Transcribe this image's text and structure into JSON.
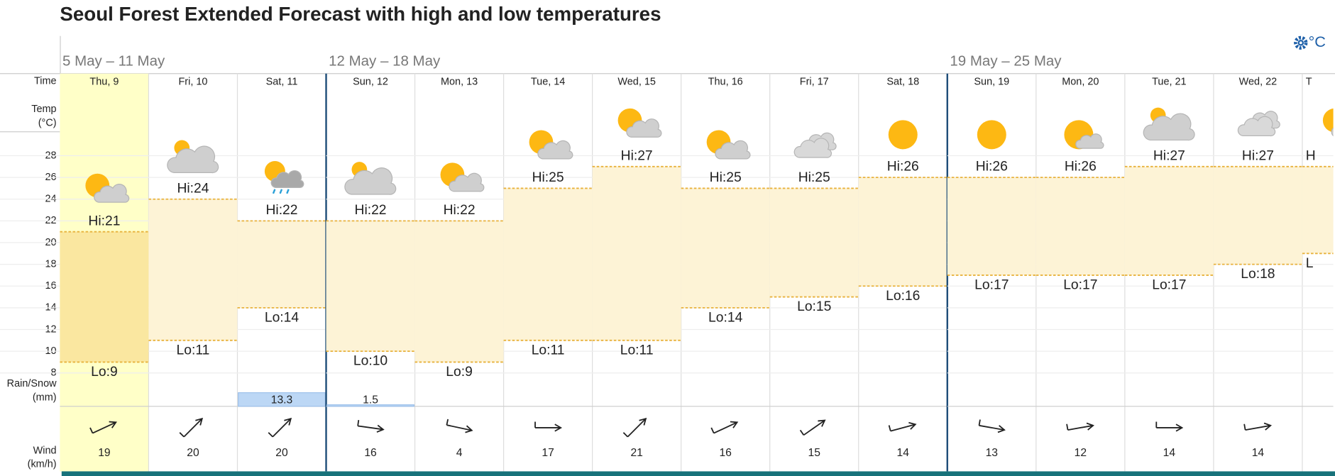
{
  "title": "Seoul Forest Extended Forecast with high and low temperatures",
  "unit": "°C",
  "row_labels": {
    "time": "Time",
    "temp": "Temp",
    "temp_unit": "(°C)",
    "rain": "Rain/Snow",
    "rain_unit": "(mm)",
    "wind": "Wind",
    "wind_unit": "(km/h)"
  },
  "temp_axis": {
    "ylim": [
      8,
      28
    ],
    "yticks": [
      8,
      10,
      12,
      14,
      16,
      18,
      20,
      22,
      24,
      26,
      28
    ]
  },
  "weeks": [
    {
      "label": "5 May – 11 May",
      "days": [
        {
          "label": "Thu, 9",
          "highlight": true,
          "icon": "partly",
          "hi": 21,
          "hi_label": "Hi:21",
          "lo": 9,
          "lo_label": "Lo:9",
          "rain": null,
          "wind": 19
        },
        {
          "label": "Fri, 10",
          "icon": "partly-cloud",
          "hi": 24,
          "hi_label": "Hi:24",
          "lo": 11,
          "lo_label": "Lo:11",
          "rain": null,
          "wind": 20
        },
        {
          "label": "Sat, 11",
          "icon": "rain",
          "hi": 22,
          "hi_label": "Hi:22",
          "lo": 14,
          "lo_label": "Lo:14",
          "rain": 13.3,
          "wind": 20
        }
      ]
    },
    {
      "label": "12 May – 18 May",
      "days": [
        {
          "label": "Sun, 12",
          "icon": "partly-cloud",
          "hi": 22,
          "hi_label": "Hi:22",
          "lo": 10,
          "lo_label": "Lo:10",
          "rain": 1.5,
          "wind": 16
        },
        {
          "label": "Mon, 13",
          "icon": "partly",
          "hi": 22,
          "hi_label": "Hi:22",
          "lo": 9,
          "lo_label": "Lo:9",
          "rain": null,
          "wind": 4
        },
        {
          "label": "Tue, 14",
          "icon": "partly",
          "hi": 25,
          "hi_label": "Hi:25",
          "lo": 11,
          "lo_label": "Lo:11",
          "rain": null,
          "wind": 17
        },
        {
          "label": "Wed, 15",
          "icon": "partly",
          "hi": 27,
          "hi_label": "Hi:27",
          "lo": 11,
          "lo_label": "Lo:11",
          "rain": null,
          "wind": 21
        },
        {
          "label": "Thu, 16",
          "icon": "partly",
          "hi": 25,
          "hi_label": "Hi:25",
          "lo": 14,
          "lo_label": "Lo:14",
          "rain": null,
          "wind": 16
        },
        {
          "label": "Fri, 17",
          "icon": "cloud",
          "hi": 25,
          "hi_label": "Hi:25",
          "lo": 15,
          "lo_label": "Lo:15",
          "rain": null,
          "wind": 15
        },
        {
          "label": "Sat, 18",
          "icon": "sun",
          "hi": 26,
          "hi_label": "Hi:26",
          "lo": 16,
          "lo_label": "Lo:16",
          "rain": null,
          "wind": 14
        }
      ]
    },
    {
      "label": "19 May – 25 May",
      "days": [
        {
          "label": "Sun, 19",
          "icon": "sun",
          "hi": 26,
          "hi_label": "Hi:26",
          "lo": 17,
          "lo_label": "Lo:17",
          "rain": null,
          "wind": 13
        },
        {
          "label": "Mon, 20",
          "icon": "sun-cloud",
          "hi": 26,
          "hi_label": "Hi:26",
          "lo": 17,
          "lo_label": "Lo:17",
          "rain": null,
          "wind": 12
        },
        {
          "label": "Tue, 21",
          "icon": "partly-cloud",
          "hi": 27,
          "hi_label": "Hi:27",
          "lo": 17,
          "lo_label": "Lo:17",
          "rain": null,
          "wind": 14
        },
        {
          "label": "Wed, 22",
          "icon": "cloud",
          "hi": 27,
          "hi_label": "Hi:27",
          "lo": 18,
          "lo_label": "Lo:18",
          "rain": null,
          "wind": 14
        },
        {
          "label": "T",
          "icon": "partly",
          "hi": 27,
          "hi_label": "H",
          "lo": 19,
          "lo_label": "L",
          "rain": null,
          "wind": null
        }
      ]
    }
  ]
}
